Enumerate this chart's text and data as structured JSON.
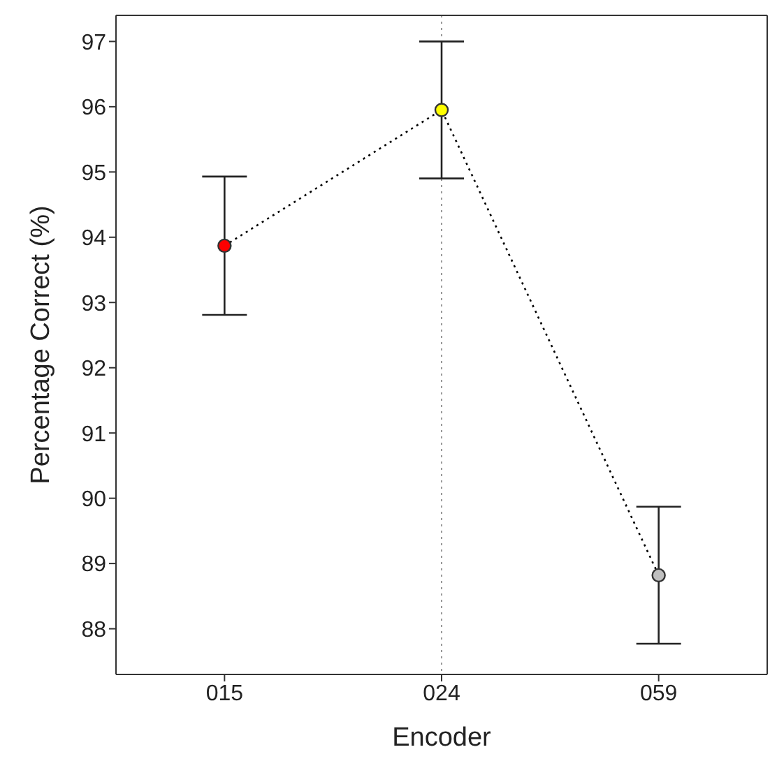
{
  "chart_data": {
    "type": "line",
    "xlabel": "Encoder",
    "ylabel": "Percentage Correct (%)",
    "categories": [
      "015",
      "024",
      "059"
    ],
    "values": [
      93.87,
      95.95,
      88.82
    ],
    "errors": [
      1.06,
      1.05,
      1.05
    ],
    "color": "#000000",
    "colors": [
      "#ff0000",
      "#ffff00",
      "#bfbfbf"
    ],
    "line_style": "dotted",
    "ylim": [
      87.3,
      97.4
    ],
    "yticks": [
      88,
      89,
      90,
      91,
      92,
      93,
      94,
      95,
      96,
      97
    ],
    "grid": true,
    "marker": "circle"
  }
}
